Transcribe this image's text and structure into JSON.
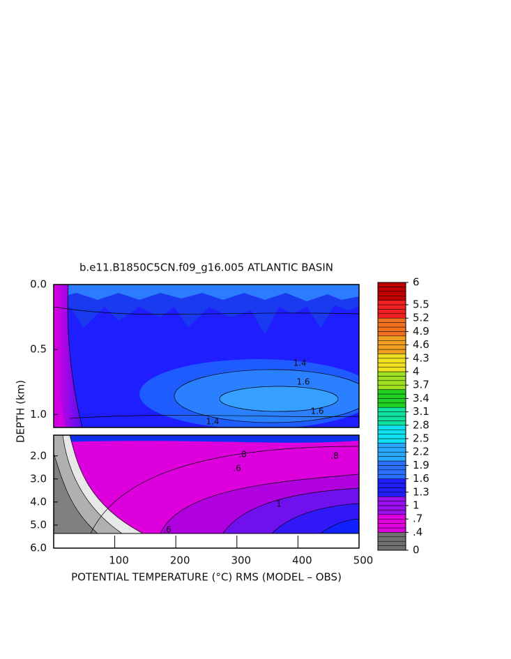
{
  "chart_data": [
    {
      "type": "contour",
      "title": "b.e11.B1850C5CN.f09_g16.005 ATLANTIC BASIN",
      "ylabel": "DEPTH (km)",
      "ylim": [
        0,
        1.1
      ],
      "yticks": [
        {
          "value": 0,
          "label": "0.0"
        },
        {
          "value": 0.5,
          "label": "0.5"
        },
        {
          "value": 1,
          "label": "1.0"
        }
      ],
      "xlim": [
        0,
        500
      ],
      "contour_labels": [
        {
          "value": 1.6,
          "label": "1.6"
        },
        {
          "value": 1.6,
          "label": "1.6"
        },
        {
          "value": 1.4,
          "label": "1.4"
        },
        {
          "value": 1.4,
          "label": "1.4"
        }
      ]
    },
    {
      "type": "contour",
      "xlabel": "POTENTIAL TEMPERATURE (°C) RMS (MODEL – OBS)",
      "ylim": [
        1.1,
        6
      ],
      "yticks": [
        {
          "value": 2,
          "label": "2.0"
        },
        {
          "value": 3,
          "label": "3.0"
        },
        {
          "value": 4,
          "label": "4.0"
        },
        {
          "value": 5,
          "label": "5.0"
        },
        {
          "value": 6,
          "label": "6.0"
        }
      ],
      "xlim": [
        0,
        500
      ],
      "xticks": [
        100,
        200,
        300,
        400,
        500
      ],
      "contour_labels": [
        {
          "value": 0.8,
          "label": ".8"
        },
        {
          "value": 0.8,
          "label": ".8"
        },
        {
          "value": 0.6,
          "label": ".6"
        },
        {
          "value": 1,
          "label": "1"
        },
        {
          "value": 0.6,
          "label": ".6"
        }
      ]
    },
    {
      "type": "colorbar",
      "lim": [
        0,
        6
      ],
      "ticks": [
        6,
        5.5,
        5.2,
        4.9,
        4.6,
        4.3,
        4,
        3.7,
        3.4,
        3.1,
        2.8,
        2.5,
        2.2,
        1.9,
        1.6,
        1.3,
        1,
        {
          "value": 0.7,
          "label": ".7"
        },
        {
          "value": 0.4,
          "label": ".4"
        },
        0
      ],
      "colors": [
        "#707070",
        "#e000e0",
        "#9a10f0",
        "#2020ff",
        "#2a70ff",
        "#28a8ff",
        "#10e0f0",
        "#10e0a0",
        "#20d020",
        "#a0e020",
        "#f0e020",
        "#f0a020",
        "#f07020",
        "#f02020",
        "#c00000"
      ]
    }
  ]
}
